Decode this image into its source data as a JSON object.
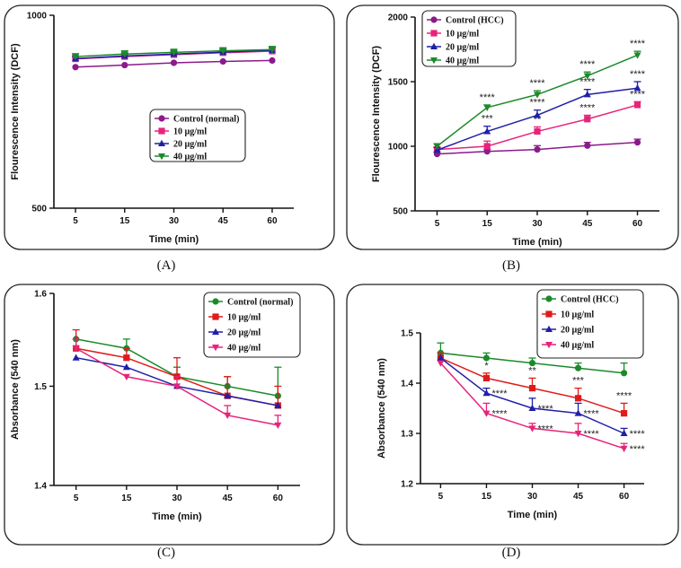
{
  "chart_data": [
    {
      "type": "line",
      "panel_label": "(A)",
      "xlabel": "Time (min)",
      "ylabel": "Flourescence Intensity (DCF)",
      "ylim": [
        500,
        1000
      ],
      "yscale": "log",
      "y_ticks": [
        500,
        1000
      ],
      "categories": [
        "5",
        "15",
        "30",
        "45",
        "60"
      ],
      "legend_position": "center-right",
      "series": [
        {
          "name": "Control (normal)",
          "color": "#8b1a8b",
          "marker": "circle",
          "values": [
            830,
            836,
            843,
            847,
            850
          ],
          "errors": [
            0,
            0,
            0,
            0,
            0
          ]
        },
        {
          "name": "10 µg/ml",
          "color": "#e8237a",
          "marker": "square",
          "values": [
            855,
            862,
            868,
            874,
            879
          ],
          "errors": [
            4,
            5,
            5,
            5,
            5
          ]
        },
        {
          "name": "20 µg/ml",
          "color": "#1f1fa8",
          "marker": "triangle-up",
          "values": [
            856,
            864,
            870,
            876,
            882
          ],
          "errors": [
            8,
            9,
            9,
            9,
            9
          ]
        },
        {
          "name": "40 µg/ml",
          "color": "#1b8a2a",
          "marker": "triangle-down",
          "values": [
            862,
            870,
            875,
            880,
            884
          ],
          "errors": [
            9,
            10,
            10,
            10,
            10
          ]
        }
      ]
    },
    {
      "type": "line",
      "panel_label": "(B)",
      "xlabel": "Time (min)",
      "ylabel": "Flourescence Intensity (DCF)",
      "ylim": [
        500,
        2000
      ],
      "y_ticks": [
        500,
        1000,
        1500,
        2000
      ],
      "categories": [
        "5",
        "15",
        "30",
        "45",
        "60"
      ],
      "legend_position": "top-left",
      "series": [
        {
          "name": "Control (HCC)",
          "color": "#8b1a8b",
          "marker": "circle",
          "values": [
            940,
            960,
            975,
            1005,
            1030
          ],
          "errors": [
            15,
            15,
            30,
            25,
            25
          ]
        },
        {
          "name": "10 µg/ml",
          "color": "#e8237a",
          "marker": "square",
          "values": [
            975,
            1000,
            1115,
            1210,
            1320
          ],
          "errors": [
            20,
            40,
            35,
            30,
            25
          ],
          "annotations": [
            "",
            "",
            "**",
            "****",
            "****"
          ]
        },
        {
          "name": "20 µg/ml",
          "color": "#1f1fa8",
          "marker": "triangle-up",
          "values": [
            970,
            1115,
            1240,
            1400,
            1450
          ],
          "errors": [
            20,
            40,
            40,
            40,
            50
          ],
          "annotations": [
            "",
            "***",
            "****",
            "****",
            "****"
          ]
        },
        {
          "name": "40 µg/ml",
          "color": "#1b8a2a",
          "marker": "triangle-down",
          "values": [
            1000,
            1300,
            1400,
            1545,
            1705
          ],
          "errors": [
            20,
            20,
            30,
            30,
            30
          ],
          "annotations": [
            "",
            "****",
            "****",
            "****",
            "****"
          ]
        }
      ]
    },
    {
      "type": "line",
      "panel_label": "(C)",
      "xlabel": "Time (min)",
      "ylabel": "Absorbance (540 nm)",
      "ylim": [
        1.4,
        1.6
      ],
      "yscale": "log",
      "y_ticks": [
        1.4,
        1.5,
        1.6
      ],
      "categories": [
        "5",
        "15",
        "30",
        "45",
        "60"
      ],
      "legend_position": "top-right",
      "series": [
        {
          "name": "Control (normal)",
          "color": "#1b8a2a",
          "marker": "circle",
          "values": [
            1.55,
            1.54,
            1.51,
            1.5,
            1.49
          ],
          "errors": [
            0,
            0.01,
            0.01,
            0.01,
            0.03
          ]
        },
        {
          "name": "10 µg/ml",
          "color": "#e01b1b",
          "marker": "square",
          "values": [
            1.54,
            1.53,
            1.51,
            1.49,
            1.48
          ],
          "errors": [
            0.02,
            0.01,
            0.02,
            0.02,
            0.02
          ]
        },
        {
          "name": "20 µg/ml",
          "color": "#1f1fa8",
          "marker": "triangle-up",
          "values": [
            1.53,
            1.52,
            1.5,
            1.49,
            1.48
          ],
          "errors": [
            0,
            0,
            0,
            0,
            0
          ]
        },
        {
          "name": "40 µg/ml",
          "color": "#e8237a",
          "marker": "triangle-down",
          "values": [
            1.54,
            1.51,
            1.5,
            1.47,
            1.46
          ],
          "errors": [
            0.01,
            0,
            0.01,
            0.01,
            0.01
          ]
        }
      ]
    },
    {
      "type": "line",
      "panel_label": "(D)",
      "xlabel": "Time (min)",
      "ylabel": "Absorbance (540 nm)",
      "ylim": [
        1.2,
        1.5
      ],
      "y_ticks": [
        1.2,
        1.3,
        1.4,
        1.5
      ],
      "categories": [
        "5",
        "15",
        "30",
        "45",
        "60"
      ],
      "legend_position": "top-right",
      "series": [
        {
          "name": "Control (HCC)",
          "color": "#1b8a2a",
          "marker": "circle",
          "values": [
            1.46,
            1.45,
            1.44,
            1.43,
            1.42
          ],
          "errors": [
            0.02,
            0.01,
            0.01,
            0.01,
            0.02
          ]
        },
        {
          "name": "10 µg/ml",
          "color": "#e01b1b",
          "marker": "square",
          "values": [
            1.45,
            1.41,
            1.39,
            1.37,
            1.34
          ],
          "errors": [
            0.01,
            0.01,
            0.02,
            0.02,
            0.02
          ],
          "annotations": [
            "",
            "*",
            "**",
            "***",
            "****"
          ]
        },
        {
          "name": "20 µg/ml",
          "color": "#1f1fa8",
          "marker": "triangle-up",
          "values": [
            1.45,
            1.38,
            1.35,
            1.34,
            1.3
          ],
          "errors": [
            0,
            0.01,
            0.02,
            0.02,
            0.01
          ],
          "annotations": [
            "",
            "****",
            "****",
            "****",
            "****"
          ]
        },
        {
          "name": "40 µg/ml",
          "color": "#e8237a",
          "marker": "triangle-down",
          "values": [
            1.44,
            1.34,
            1.31,
            1.3,
            1.27
          ],
          "errors": [
            0,
            0.02,
            0.01,
            0.02,
            0.01
          ],
          "annotations": [
            "",
            "****",
            "****",
            "****",
            "****"
          ]
        }
      ]
    }
  ]
}
